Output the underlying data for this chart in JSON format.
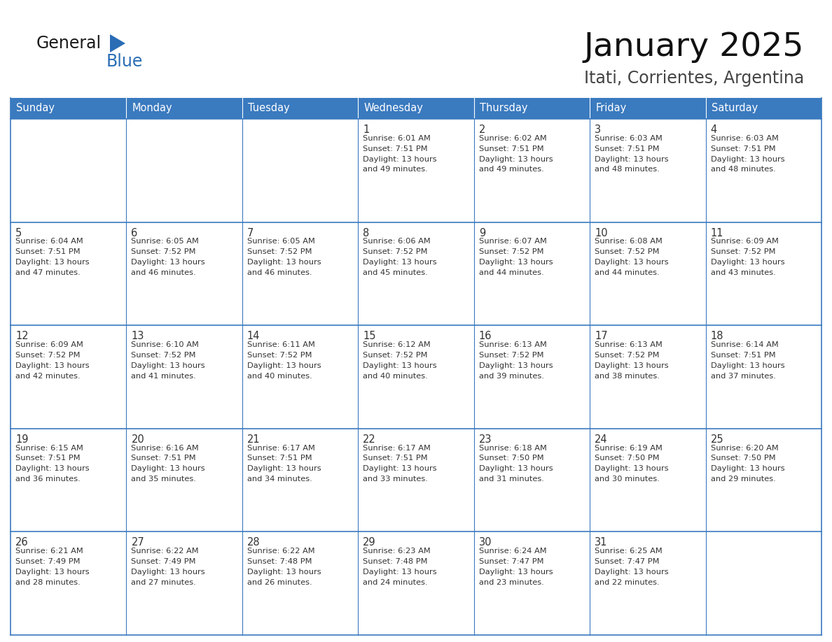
{
  "title": "January 2025",
  "subtitle": "Itati, Corrientes, Argentina",
  "header_bg": "#3a7abf",
  "header_text_color": "#ffffff",
  "grid_line_color": "#3a7abf",
  "text_color": "#333333",
  "day_number_color": "#333333",
  "days_of_week": [
    "Sunday",
    "Monday",
    "Tuesday",
    "Wednesday",
    "Thursday",
    "Friday",
    "Saturday"
  ],
  "logo_general_color": "#1a1a1a",
  "logo_blue_color": "#2a6db5",
  "calendar": [
    [
      {
        "day": "",
        "sunrise": "",
        "sunset": "",
        "daylight": ""
      },
      {
        "day": "",
        "sunrise": "",
        "sunset": "",
        "daylight": ""
      },
      {
        "day": "",
        "sunrise": "",
        "sunset": "",
        "daylight": ""
      },
      {
        "day": "1",
        "sunrise": "6:01 AM",
        "sunset": "7:51 PM",
        "daylight": "13 hours",
        "daylight2": "and 49 minutes."
      },
      {
        "day": "2",
        "sunrise": "6:02 AM",
        "sunset": "7:51 PM",
        "daylight": "13 hours",
        "daylight2": "and 49 minutes."
      },
      {
        "day": "3",
        "sunrise": "6:03 AM",
        "sunset": "7:51 PM",
        "daylight": "13 hours",
        "daylight2": "and 48 minutes."
      },
      {
        "day": "4",
        "sunrise": "6:03 AM",
        "sunset": "7:51 PM",
        "daylight": "13 hours",
        "daylight2": "and 48 minutes."
      }
    ],
    [
      {
        "day": "5",
        "sunrise": "6:04 AM",
        "sunset": "7:51 PM",
        "daylight": "13 hours",
        "daylight2": "and 47 minutes."
      },
      {
        "day": "6",
        "sunrise": "6:05 AM",
        "sunset": "7:52 PM",
        "daylight": "13 hours",
        "daylight2": "and 46 minutes."
      },
      {
        "day": "7",
        "sunrise": "6:05 AM",
        "sunset": "7:52 PM",
        "daylight": "13 hours",
        "daylight2": "and 46 minutes."
      },
      {
        "day": "8",
        "sunrise": "6:06 AM",
        "sunset": "7:52 PM",
        "daylight": "13 hours",
        "daylight2": "and 45 minutes."
      },
      {
        "day": "9",
        "sunrise": "6:07 AM",
        "sunset": "7:52 PM",
        "daylight": "13 hours",
        "daylight2": "and 44 minutes."
      },
      {
        "day": "10",
        "sunrise": "6:08 AM",
        "sunset": "7:52 PM",
        "daylight": "13 hours",
        "daylight2": "and 44 minutes."
      },
      {
        "day": "11",
        "sunrise": "6:09 AM",
        "sunset": "7:52 PM",
        "daylight": "13 hours",
        "daylight2": "and 43 minutes."
      }
    ],
    [
      {
        "day": "12",
        "sunrise": "6:09 AM",
        "sunset": "7:52 PM",
        "daylight": "13 hours",
        "daylight2": "and 42 minutes."
      },
      {
        "day": "13",
        "sunrise": "6:10 AM",
        "sunset": "7:52 PM",
        "daylight": "13 hours",
        "daylight2": "and 41 minutes."
      },
      {
        "day": "14",
        "sunrise": "6:11 AM",
        "sunset": "7:52 PM",
        "daylight": "13 hours",
        "daylight2": "and 40 minutes."
      },
      {
        "day": "15",
        "sunrise": "6:12 AM",
        "sunset": "7:52 PM",
        "daylight": "13 hours",
        "daylight2": "and 40 minutes."
      },
      {
        "day": "16",
        "sunrise": "6:13 AM",
        "sunset": "7:52 PM",
        "daylight": "13 hours",
        "daylight2": "and 39 minutes."
      },
      {
        "day": "17",
        "sunrise": "6:13 AM",
        "sunset": "7:52 PM",
        "daylight": "13 hours",
        "daylight2": "and 38 minutes."
      },
      {
        "day": "18",
        "sunrise": "6:14 AM",
        "sunset": "7:51 PM",
        "daylight": "13 hours",
        "daylight2": "and 37 minutes."
      }
    ],
    [
      {
        "day": "19",
        "sunrise": "6:15 AM",
        "sunset": "7:51 PM",
        "daylight": "13 hours",
        "daylight2": "and 36 minutes."
      },
      {
        "day": "20",
        "sunrise": "6:16 AM",
        "sunset": "7:51 PM",
        "daylight": "13 hours",
        "daylight2": "and 35 minutes."
      },
      {
        "day": "21",
        "sunrise": "6:17 AM",
        "sunset": "7:51 PM",
        "daylight": "13 hours",
        "daylight2": "and 34 minutes."
      },
      {
        "day": "22",
        "sunrise": "6:17 AM",
        "sunset": "7:51 PM",
        "daylight": "13 hours",
        "daylight2": "and 33 minutes."
      },
      {
        "day": "23",
        "sunrise": "6:18 AM",
        "sunset": "7:50 PM",
        "daylight": "13 hours",
        "daylight2": "and 31 minutes."
      },
      {
        "day": "24",
        "sunrise": "6:19 AM",
        "sunset": "7:50 PM",
        "daylight": "13 hours",
        "daylight2": "and 30 minutes."
      },
      {
        "day": "25",
        "sunrise": "6:20 AM",
        "sunset": "7:50 PM",
        "daylight": "13 hours",
        "daylight2": "and 29 minutes."
      }
    ],
    [
      {
        "day": "26",
        "sunrise": "6:21 AM",
        "sunset": "7:49 PM",
        "daylight": "13 hours",
        "daylight2": "and 28 minutes."
      },
      {
        "day": "27",
        "sunrise": "6:22 AM",
        "sunset": "7:49 PM",
        "daylight": "13 hours",
        "daylight2": "and 27 minutes."
      },
      {
        "day": "28",
        "sunrise": "6:22 AM",
        "sunset": "7:48 PM",
        "daylight": "13 hours",
        "daylight2": "and 26 minutes."
      },
      {
        "day": "29",
        "sunrise": "6:23 AM",
        "sunset": "7:48 PM",
        "daylight": "13 hours",
        "daylight2": "and 24 minutes."
      },
      {
        "day": "30",
        "sunrise": "6:24 AM",
        "sunset": "7:47 PM",
        "daylight": "13 hours",
        "daylight2": "and 23 minutes."
      },
      {
        "day": "31",
        "sunrise": "6:25 AM",
        "sunset": "7:47 PM",
        "daylight": "13 hours",
        "daylight2": "and 22 minutes."
      },
      {
        "day": "",
        "sunrise": "",
        "sunset": "",
        "daylight": "",
        "daylight2": ""
      }
    ]
  ]
}
